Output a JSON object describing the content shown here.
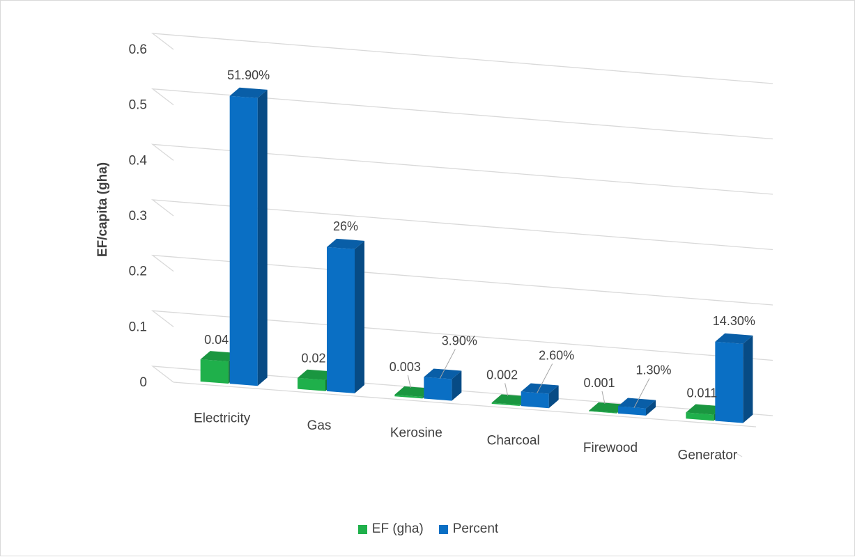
{
  "chart_data": {
    "type": "bar",
    "variant": "3d-clustered-column",
    "title": "",
    "xlabel": "",
    "ylabel": "EF/capita (gha)",
    "ylim": [
      0,
      0.6
    ],
    "yticks": [
      "0",
      "0.1",
      "0.2",
      "0.3",
      "0.4",
      "0.5",
      "0.6"
    ],
    "grid": true,
    "legend_position": "bottom",
    "categories": [
      "Electricity",
      "Gas",
      "Kerosine",
      "Charcoal",
      "Firewood",
      "Generator"
    ],
    "series": [
      {
        "name": "EF (gha)",
        "color": "#1fb04b",
        "values": [
          0.04,
          0.02,
          0.003,
          0.002,
          0.001,
          0.011
        ],
        "labels": [
          "0.04",
          "0.02",
          "0.003",
          "0.002",
          "0.001",
          "0.011"
        ]
      },
      {
        "name": "Percent",
        "color": "#0a6fc4",
        "values": [
          0.519,
          0.26,
          0.039,
          0.026,
          0.013,
          0.143
        ],
        "labels": [
          "51.90%",
          "26%",
          "3.90%",
          "2.60%",
          "1.30%",
          "14.30%"
        ]
      }
    ]
  }
}
